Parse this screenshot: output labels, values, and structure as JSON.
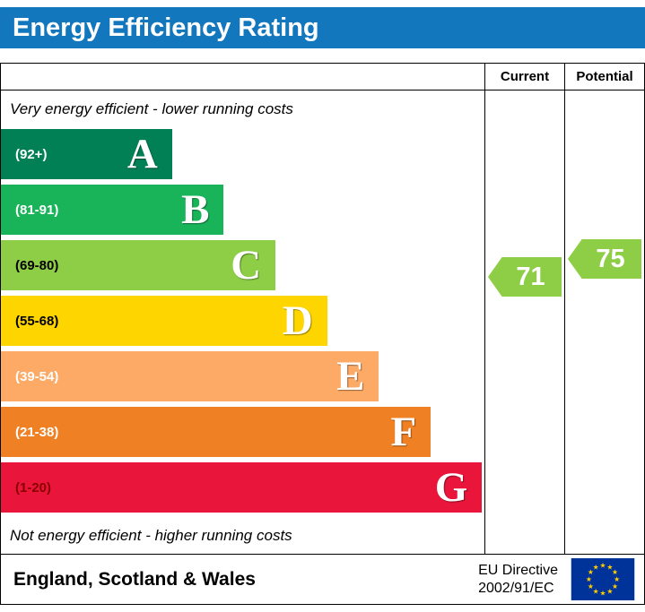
{
  "header": {
    "title": "Energy Efficiency Rating",
    "bg_color": "#1377bd"
  },
  "table": {
    "current_label": "Current",
    "potential_label": "Potential"
  },
  "chart_data": {
    "type": "bar",
    "title": "Energy Efficiency Rating",
    "top_note": "Very energy efficient - lower running costs",
    "bottom_note": "Not energy efficient - higher running costs",
    "letter_color": "#ffffff",
    "bands": [
      {
        "letter": "A",
        "range_label": "(92+)",
        "score_range": "92+",
        "color": "#008054",
        "range_text_color": "#ffffff",
        "width_pct": 35.4
      },
      {
        "letter": "B",
        "range_label": "(81-91)",
        "score_range": "81-91",
        "color": "#19b459",
        "range_text_color": "#ffffff",
        "width_pct": 46.1
      },
      {
        "letter": "C",
        "range_label": "(69-80)",
        "score_range": "69-80",
        "color": "#8dce46",
        "range_text_color": "#000000",
        "width_pct": 56.8
      },
      {
        "letter": "D",
        "range_label": "(55-68)",
        "score_range": "55-68",
        "color": "#ffd500",
        "range_text_color": "#000000",
        "width_pct": 67.5
      },
      {
        "letter": "E",
        "range_label": "(39-54)",
        "score_range": "39-54",
        "color": "#fcaa65",
        "range_text_color": "#ffffff",
        "width_pct": 78.2
      },
      {
        "letter": "F",
        "range_label": "(21-38)",
        "score_range": "21-38",
        "color": "#ef8023",
        "range_text_color": "#ffffff",
        "width_pct": 88.9
      },
      {
        "letter": "G",
        "range_label": "(1-20)",
        "score_range": "1-20",
        "color": "#e9153b",
        "range_text_color": "#8b0000",
        "width_pct": 99.5
      }
    ],
    "current": {
      "label": "Current",
      "value": 71,
      "band": "C",
      "color": "#8dce46"
    },
    "potential": {
      "label": "Potential",
      "value": 75,
      "band": "C",
      "color": "#8dce46"
    }
  },
  "footer": {
    "region": "England, Scotland & Wales",
    "directive_line1": "EU Directive",
    "directive_line2": "2002/91/EC",
    "flag_colors": {
      "field": "#003399",
      "stars": "#ffcc00"
    }
  }
}
